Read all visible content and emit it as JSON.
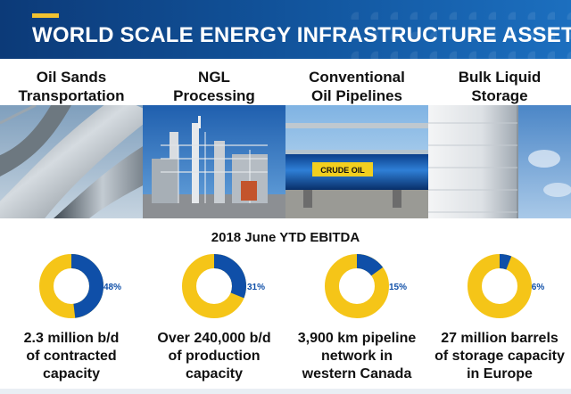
{
  "header": {
    "title": "WORLD SCALE ENERGY INFRASTRUCTURE ASSETS"
  },
  "columns": [
    {
      "title_lines": [
        "Oil Sands",
        "Transportation"
      ],
      "caption_lines": [
        "2.3 million b/d",
        "of contracted",
        "capacity"
      ]
    },
    {
      "title_lines": [
        "NGL",
        "Processing"
      ],
      "caption_lines": [
        "Over 240,000 b/d",
        "of production",
        "capacity"
      ]
    },
    {
      "title_lines": [
        "Conventional",
        "Oil Pipelines"
      ],
      "caption_lines": [
        "3,900 km pipeline",
        "network in",
        "western Canada"
      ]
    },
    {
      "title_lines": [
        "Bulk Liquid",
        "Storage"
      ],
      "caption_lines": [
        "27 million barrels",
        "of storage capacity",
        "in Europe"
      ]
    }
  ],
  "photo_labels": {
    "pipe_sign": "CRUDE OIL"
  },
  "colors": {
    "share": "#0f4fa8",
    "remainder": "#f5c518",
    "header_dark": "#0c3a78",
    "accent": "#f2c230"
  },
  "chart_data": {
    "type": "pie",
    "title": "2018 June YTD EBITDA",
    "categories": [
      "Oil Sands Transportation",
      "NGL Processing",
      "Conventional Oil Pipelines",
      "Bulk Liquid Storage"
    ],
    "values": [
      48,
      31,
      15,
      6
    ],
    "labels": [
      "48%",
      "31%",
      "15%",
      "6%"
    ],
    "style": "donut"
  }
}
